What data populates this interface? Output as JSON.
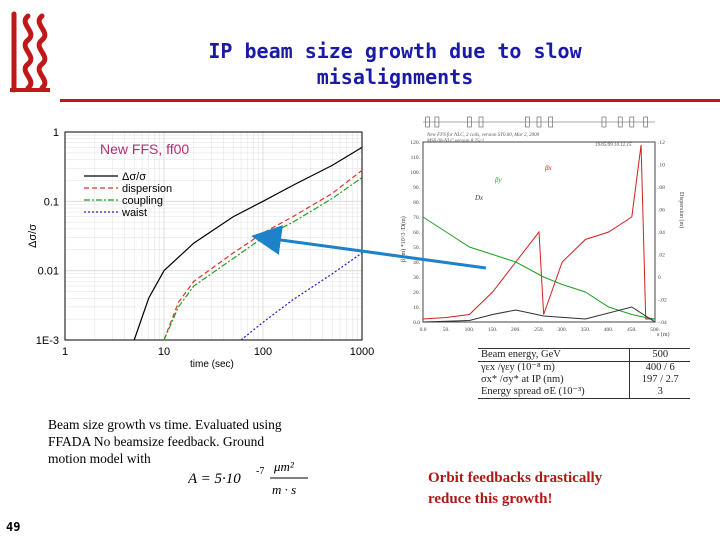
{
  "title_line1": "IP beam size growth due to slow",
  "title_line2": "misalignments",
  "colors": {
    "title": "#1a1aa8",
    "rule": "#c01818",
    "logo": "#c01818",
    "accent": "#b01818",
    "arrow": "#1e82c8"
  },
  "chart_data": [
    {
      "type": "line",
      "title": "New FFS, ff00",
      "xlabel": "time (sec)",
      "ylabel": "Δσ/σ",
      "x_scale": "log",
      "y_scale": "log",
      "xlim": [
        1,
        1000
      ],
      "ylim": [
        0.001,
        1
      ],
      "x_ticks": [
        "1",
        "10",
        "100",
        "1000"
      ],
      "y_ticks": [
        "1",
        "0.1",
        "0.01",
        "1E-3"
      ],
      "legend_position": "top-left",
      "series": [
        {
          "name": "Δσ/σ",
          "color": "#000000",
          "dash": "solid",
          "x": [
            5,
            7,
            10,
            20,
            50,
            100,
            200,
            500,
            1000
          ],
          "y": [
            0.001,
            0.004,
            0.01,
            0.025,
            0.06,
            0.1,
            0.17,
            0.33,
            0.6
          ]
        },
        {
          "name": "dispersion",
          "color": "#e03030",
          "dash": "dashed",
          "x": [
            10,
            14,
            20,
            50,
            100,
            200,
            500,
            1000
          ],
          "y": [
            0.001,
            0.0035,
            0.007,
            0.018,
            0.035,
            0.06,
            0.13,
            0.28
          ]
        },
        {
          "name": "coupling",
          "color": "#20a020",
          "dash": "dashdot",
          "x": [
            10,
            14,
            20,
            50,
            100,
            200,
            500,
            1000
          ],
          "y": [
            0.001,
            0.003,
            0.006,
            0.015,
            0.03,
            0.05,
            0.11,
            0.22
          ]
        },
        {
          "name": "waist",
          "color": "#2020c0",
          "dash": "dotted",
          "x": [
            60,
            100,
            200,
            500,
            1000
          ],
          "y": [
            0.001,
            0.0018,
            0.0038,
            0.009,
            0.018
          ]
        }
      ]
    },
    {
      "type": "line",
      "header_lines": [
        "New FFS for NLC, 2 coils, version ST0.00, Mar 2, 2000",
        "MS0.00-NLC version 8.25c1",
        "19/05/99 10.12.15"
      ],
      "xlabel": "s (m)",
      "ylabel_left": "β (m)  *10^3 /D(m)",
      "ylabel_right": "Dispersion (m)",
      "x_ticks": [
        "0.0",
        "50.",
        "100.",
        "150.",
        "200.",
        "259.",
        "300.",
        "350.",
        "400.",
        "450.",
        "500."
      ],
      "y_ticks_left": [
        "0.0",
        "10.",
        "20.",
        "30.",
        "40.",
        "50.",
        "60.",
        "70.",
        "80.",
        "90.",
        "100.",
        "110.",
        "120."
      ],
      "y_ticks_right": [
        "-.04",
        "-.02",
        "0",
        ".02",
        ".04",
        ".06",
        ".08",
        ".10",
        ".12"
      ],
      "curve_labels": [
        "βx",
        "βy",
        "Dx"
      ],
      "series": [
        {
          "name": "βx",
          "color": "#d02020",
          "x": [
            0,
            50,
            100,
            150,
            200,
            250,
            260,
            300,
            350,
            400,
            450,
            470,
            480,
            500
          ],
          "y": [
            2,
            3,
            5,
            20,
            40,
            60,
            5,
            40,
            55,
            60,
            70,
            118,
            2,
            2
          ]
        },
        {
          "name": "βy",
          "color": "#20a020",
          "x": [
            0,
            50,
            100,
            150,
            200,
            260,
            300,
            350,
            400,
            450,
            480,
            500
          ],
          "y": [
            70,
            60,
            50,
            45,
            40,
            30,
            25,
            20,
            10,
            5,
            3,
            2
          ]
        },
        {
          "name": "Dx",
          "color": "#303030",
          "x": [
            0,
            100,
            150,
            200,
            260,
            350,
            450,
            500
          ],
          "y": [
            0,
            1,
            5,
            8,
            4,
            2,
            10,
            0
          ]
        }
      ]
    }
  ],
  "table": {
    "rows": [
      {
        "label": "Beam energy, GeV",
        "value": "500"
      },
      {
        "label": "γεx /γεy (10⁻⁸ m)",
        "value": "400 / 6"
      },
      {
        "label": "σx* /σy* at IP (nm)",
        "value": "197 / 2.7"
      },
      {
        "label": "Energy spread σE (10⁻³)",
        "value": "3"
      }
    ]
  },
  "caption_line1": "Beam size growth vs time. Evaluated using",
  "caption_line2": "FFADA No beamsize feedback. Ground",
  "caption_line3": "motion model with",
  "formula": {
    "lhs": "A = 5·10",
    "exp": "-7",
    "num": "μm²",
    "den": "m · s"
  },
  "orbit_line1": "Orbit feedbacks drastically",
  "orbit_line2": "reduce this growth!",
  "page_number": "49"
}
